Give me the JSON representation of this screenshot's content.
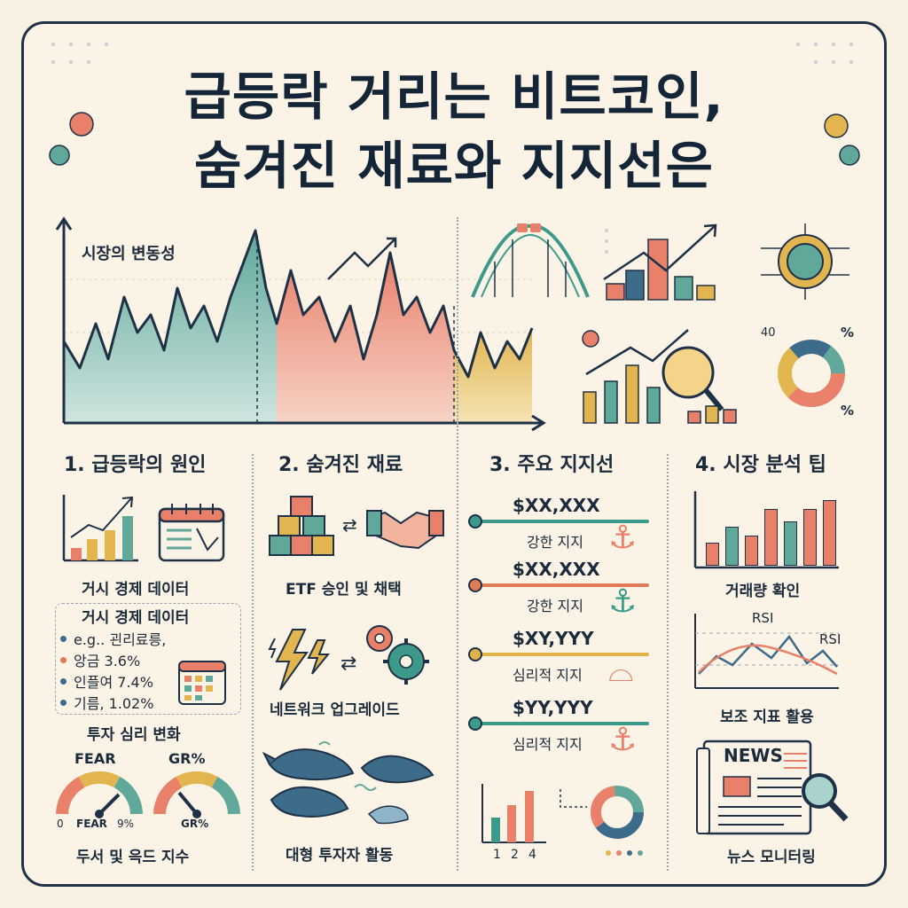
{
  "title": {
    "line1": "급등락 거리는 비트코인,",
    "line2": "숨겨진 재료와 지지선은"
  },
  "main_chart": {
    "label": "시장의 변동성"
  },
  "sections": {
    "s1": {
      "heading": "1. 급등락의 원인",
      "macro_caption": "거시 경제 데이터",
      "box_title": "거시 경제 데이터",
      "bullets": [
        {
          "text": "e.g.. 괸리료릉,",
          "color": "#3d6b8a"
        },
        {
          "text": "앙금 3.6%",
          "color": "#e07b5a"
        },
        {
          "text": "인플여 7.4%",
          "color": "#3d6b8a"
        },
        {
          "text": "기름, 1.02%",
          "color": "#3d6b8a"
        }
      ],
      "sentiment_caption": "투자 심리 변화",
      "gauge1_label": "FEAR",
      "gauge2_label": "GR%",
      "gauge1_sub": "FEAR",
      "gauge1_zero": "0",
      "gauge1_pct": "9%",
      "gauge2_sub": "GR%",
      "index_caption": "두서 및 윽드 지수"
    },
    "s2": {
      "heading": "2. 숨겨진 재료",
      "etf_caption": "ETF 승인 및 채택",
      "network_caption": "네트워크 업그레이드",
      "whale_caption": "대형 투자자 활동"
    },
    "s3": {
      "heading": "3. 주요 지지선",
      "levels": [
        {
          "price": "$XX,XXX",
          "note": "강한 지지",
          "color": "#3d9a8b"
        },
        {
          "price": "$XX,XXX",
          "note": "강한 지지",
          "color": "#e07b5a"
        },
        {
          "price": "$XY,YYY",
          "note": "심리적 지지",
          "color": "#e0b34a"
        },
        {
          "price": "$YY,YYY",
          "note": "심리적 지지",
          "color": "#3d9a8b"
        }
      ],
      "axis_ticks": [
        "1",
        "2",
        "4"
      ]
    },
    "s4": {
      "heading": "4. 시장 분석 팁",
      "volume_caption": "거래량 확인",
      "rsi_label1": "RSI",
      "rsi_label2": "RSI",
      "indicator_caption": "보조 지표 활용",
      "news_label": "NEWS",
      "news_caption": "뉴스 모니터링"
    }
  },
  "icons_top": {
    "donut_label_40": "40",
    "donut_pct_1": "%",
    "donut_pct_2": "%"
  },
  "colors": {
    "teal": "#5fa89a",
    "coral": "#e9806a",
    "mustard": "#e2b54f",
    "navy": "#1f3147",
    "cream": "#f8f1e2"
  }
}
